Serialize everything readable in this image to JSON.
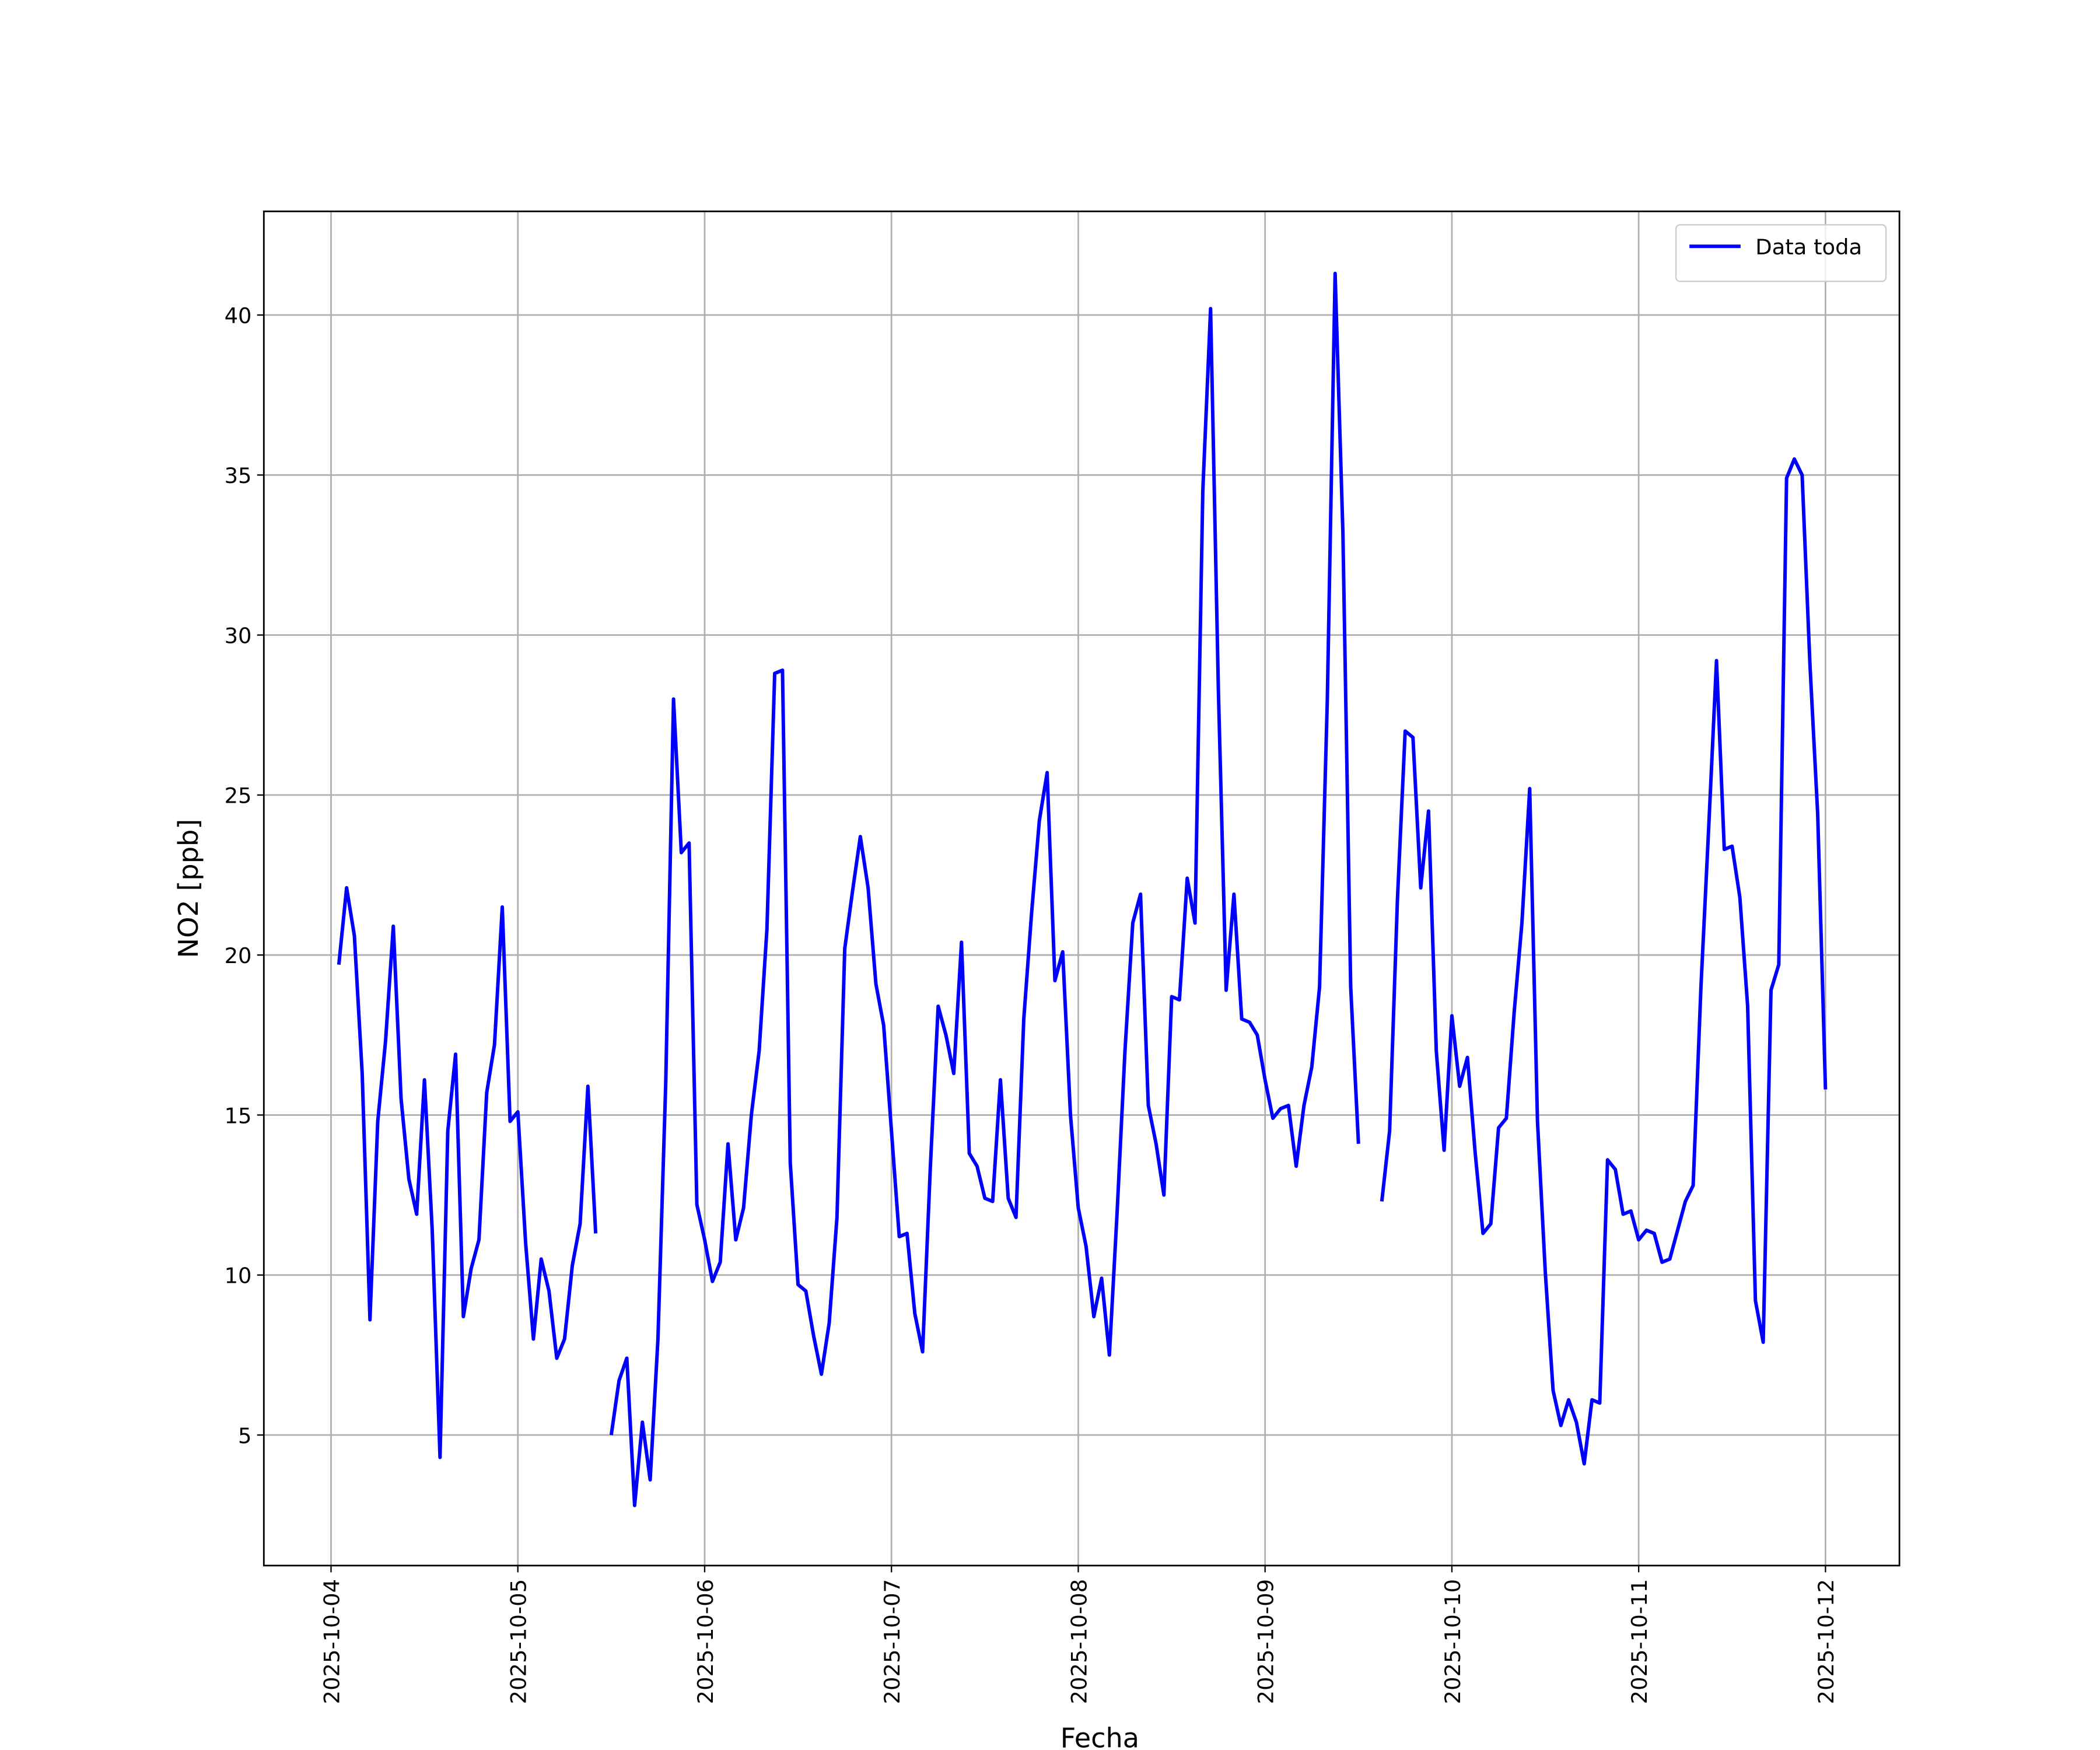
{
  "chart_data": {
    "type": "line",
    "xlabel": "Fecha",
    "ylabel": "NO2 [ppb]",
    "x": [
      "2025-10-04 01:00",
      "2025-10-04 02:00",
      "2025-10-04 03:00",
      "2025-10-04 04:00",
      "2025-10-04 05:00",
      "2025-10-04 06:00",
      "2025-10-04 07:00",
      "2025-10-04 08:00",
      "2025-10-04 09:00",
      "2025-10-04 10:00",
      "2025-10-04 11:00",
      "2025-10-04 12:00",
      "2025-10-04 13:00",
      "2025-10-04 14:00",
      "2025-10-04 15:00",
      "2025-10-04 16:00",
      "2025-10-04 17:00",
      "2025-10-04 18:00",
      "2025-10-04 19:00",
      "2025-10-04 20:00",
      "2025-10-04 21:00",
      "2025-10-04 22:00",
      "2025-10-04 23:00",
      "2025-10-05 00:00",
      "2025-10-05 01:00",
      "2025-10-05 02:00",
      "2025-10-05 03:00",
      "2025-10-05 04:00",
      "2025-10-05 05:00",
      "2025-10-05 06:00",
      "2025-10-05 07:00",
      "2025-10-05 08:00",
      "2025-10-05 09:00",
      "2025-10-05 10:00",
      "2025-10-05 11:00",
      "2025-10-05 12:00",
      "2025-10-05 13:00",
      "2025-10-05 14:00",
      "2025-10-05 15:00",
      "2025-10-05 16:00",
      "2025-10-05 17:00",
      "2025-10-05 18:00",
      "2025-10-05 19:00",
      "2025-10-05 20:00",
      "2025-10-05 21:00",
      "2025-10-05 22:00",
      "2025-10-05 23:00",
      "2025-10-06 00:00",
      "2025-10-06 01:00",
      "2025-10-06 02:00",
      "2025-10-06 03:00",
      "2025-10-06 04:00",
      "2025-10-06 05:00",
      "2025-10-06 06:00",
      "2025-10-06 07:00",
      "2025-10-06 08:00",
      "2025-10-06 09:00",
      "2025-10-06 10:00",
      "2025-10-06 11:00",
      "2025-10-06 12:00",
      "2025-10-06 13:00",
      "2025-10-06 14:00",
      "2025-10-06 15:00",
      "2025-10-06 16:00",
      "2025-10-06 17:00",
      "2025-10-06 18:00",
      "2025-10-06 19:00",
      "2025-10-06 20:00",
      "2025-10-06 21:00",
      "2025-10-06 22:00",
      "2025-10-06 23:00",
      "2025-10-07 00:00",
      "2025-10-07 01:00",
      "2025-10-07 02:00",
      "2025-10-07 03:00",
      "2025-10-07 04:00",
      "2025-10-07 05:00",
      "2025-10-07 06:00",
      "2025-10-07 07:00",
      "2025-10-07 08:00",
      "2025-10-07 09:00",
      "2025-10-07 10:00",
      "2025-10-07 11:00",
      "2025-10-07 12:00",
      "2025-10-07 13:00",
      "2025-10-07 14:00",
      "2025-10-07 15:00",
      "2025-10-07 16:00",
      "2025-10-07 17:00",
      "2025-10-07 18:00",
      "2025-10-07 19:00",
      "2025-10-07 20:00",
      "2025-10-07 21:00",
      "2025-10-07 22:00",
      "2025-10-07 23:00",
      "2025-10-08 00:00",
      "2025-10-08 01:00",
      "2025-10-08 02:00",
      "2025-10-08 03:00",
      "2025-10-08 04:00",
      "2025-10-08 05:00",
      "2025-10-08 06:00",
      "2025-10-08 07:00",
      "2025-10-08 08:00",
      "2025-10-08 09:00",
      "2025-10-08 10:00",
      "2025-10-08 11:00",
      "2025-10-08 12:00",
      "2025-10-08 13:00",
      "2025-10-08 14:00",
      "2025-10-08 15:00",
      "2025-10-08 16:00",
      "2025-10-08 17:00",
      "2025-10-08 18:00",
      "2025-10-08 19:00",
      "2025-10-08 20:00",
      "2025-10-08 21:00",
      "2025-10-08 22:00",
      "2025-10-08 23:00",
      "2025-10-09 00:00",
      "2025-10-09 01:00",
      "2025-10-09 02:00",
      "2025-10-09 03:00",
      "2025-10-09 04:00",
      "2025-10-09 05:00",
      "2025-10-09 06:00",
      "2025-10-09 07:00",
      "2025-10-09 08:00",
      "2025-10-09 09:00",
      "2025-10-09 10:00",
      "2025-10-09 11:00",
      "2025-10-09 12:00",
      "2025-10-09 13:00",
      "2025-10-09 14:00",
      "2025-10-09 15:00",
      "2025-10-09 16:00",
      "2025-10-09 17:00",
      "2025-10-09 18:00",
      "2025-10-09 19:00",
      "2025-10-09 20:00",
      "2025-10-09 21:00",
      "2025-10-09 22:00",
      "2025-10-09 23:00",
      "2025-10-10 00:00",
      "2025-10-10 01:00",
      "2025-10-10 02:00",
      "2025-10-10 03:00",
      "2025-10-10 04:00",
      "2025-10-10 05:00",
      "2025-10-10 06:00",
      "2025-10-10 07:00",
      "2025-10-10 08:00",
      "2025-10-10 09:00",
      "2025-10-10 10:00",
      "2025-10-10 11:00",
      "2025-10-10 12:00",
      "2025-10-10 13:00",
      "2025-10-10 14:00",
      "2025-10-10 15:00",
      "2025-10-10 16:00",
      "2025-10-10 17:00",
      "2025-10-10 18:00",
      "2025-10-10 19:00",
      "2025-10-10 20:00",
      "2025-10-10 21:00",
      "2025-10-10 22:00",
      "2025-10-10 23:00",
      "2025-10-11 00:00",
      "2025-10-11 01:00",
      "2025-10-11 02:00",
      "2025-10-11 03:00",
      "2025-10-11 04:00",
      "2025-10-11 05:00",
      "2025-10-11 06:00",
      "2025-10-11 07:00",
      "2025-10-11 08:00",
      "2025-10-11 09:00",
      "2025-10-11 10:00",
      "2025-10-11 11:00",
      "2025-10-11 12:00",
      "2025-10-11 13:00",
      "2025-10-11 14:00",
      "2025-10-11 15:00",
      "2025-10-11 16:00",
      "2025-10-11 17:00",
      "2025-10-11 18:00",
      "2025-10-11 19:00",
      "2025-10-11 20:00",
      "2025-10-11 21:00",
      "2025-10-11 22:00",
      "2025-10-11 23:00",
      "2025-10-12 00:00"
    ],
    "series": [
      {
        "name": "Data toda",
        "color": "#0000ff",
        "values": [
          19.7,
          22.1,
          20.6,
          16.3,
          8.6,
          14.8,
          17.3,
          20.9,
          15.5,
          13.0,
          11.9,
          16.1,
          11.4,
          4.3,
          14.5,
          16.9,
          8.7,
          10.2,
          11.1,
          15.7,
          17.2,
          21.5,
          14.8,
          15.1,
          11.0,
          8.0,
          10.5,
          9.5,
          7.4,
          8.0,
          10.3,
          11.6,
          15.9,
          11.3,
          null,
          5.0,
          6.7,
          7.4,
          2.8,
          5.4,
          3.6,
          8.0,
          16.0,
          28.0,
          23.2,
          23.5,
          12.2,
          11.1,
          9.8,
          10.4,
          14.1,
          11.1,
          12.1,
          15.0,
          17.0,
          20.8,
          28.8,
          28.9,
          13.5,
          9.7,
          9.5,
          8.1,
          6.9,
          8.5,
          11.8,
          20.2,
          22.0,
          23.7,
          22.1,
          19.1,
          17.8,
          14.5,
          11.2,
          11.3,
          8.8,
          7.6,
          13.4,
          18.4,
          17.5,
          16.3,
          20.4,
          13.8,
          13.4,
          12.4,
          12.3,
          16.1,
          12.4,
          11.8,
          18.0,
          21.3,
          24.2,
          25.7,
          19.2,
          20.1,
          15.0,
          12.1,
          10.9,
          8.7,
          9.9,
          7.5,
          12.0,
          17.0,
          21.0,
          21.9,
          15.3,
          14.1,
          12.5,
          18.7,
          18.6,
          22.4,
          21.0,
          34.5,
          40.2,
          28.3,
          18.9,
          21.9,
          18.0,
          17.9,
          17.5,
          16.1,
          14.9,
          15.2,
          15.3,
          13.4,
          15.3,
          16.5,
          19.0,
          28.0,
          41.3,
          33.2,
          19.0,
          14.1,
          null,
          null,
          12.3,
          14.5,
          21.7,
          27.0,
          26.8,
          22.1,
          24.5,
          17.0,
          13.9,
          18.1,
          15.9,
          16.8,
          13.8,
          11.3,
          11.6,
          14.6,
          14.9,
          18.2,
          21.0,
          25.2,
          14.8,
          10.1,
          6.4,
          5.3,
          6.1,
          5.4,
          4.1,
          6.1,
          6.0,
          13.6,
          13.3,
          11.9,
          12.0,
          11.1,
          11.4,
          11.3,
          10.4,
          10.5,
          11.4,
          12.3,
          12.8,
          19.0,
          24.0,
          29.2,
          23.3,
          23.4,
          21.8,
          18.4,
          9.2,
          7.9,
          18.9,
          19.7,
          34.9,
          35.5,
          35.0,
          29.1,
          24.4,
          15.8
        ]
      }
    ],
    "xlim": [
      "2025-10-03 15:22",
      "2025-10-12 09:30"
    ],
    "xticks": [
      "2025-10-04",
      "2025-10-05",
      "2025-10-06",
      "2025-10-07",
      "2025-10-08",
      "2025-10-09",
      "2025-10-10",
      "2025-10-11",
      "2025-10-12"
    ],
    "ylim": [
      0.92,
      43.24
    ],
    "yticks": [
      5,
      10,
      15,
      20,
      25,
      30,
      35,
      40
    ],
    "grid": true,
    "legend": "upper right"
  }
}
